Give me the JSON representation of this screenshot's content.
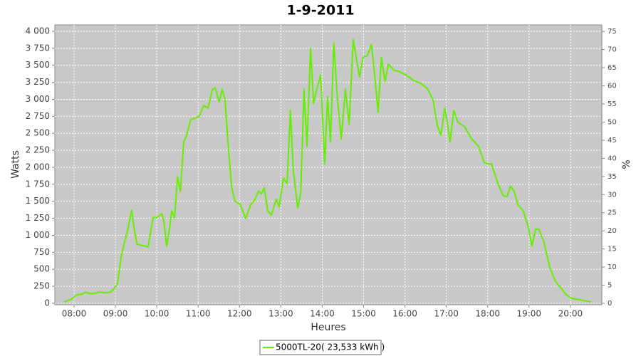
{
  "chart_data": {
    "type": "line",
    "title": "1-9-2011",
    "xlabel": "Heures",
    "ylabel": "Watts",
    "y2label": "%",
    "xlim": [
      7.535,
      20.76
    ],
    "ylim": [
      -21,
      4094
    ],
    "y2lim": [
      -0.39,
      76.8
    ],
    "xticks": [
      {
        "value": 8,
        "label": "08:00"
      },
      {
        "value": 9,
        "label": "09:00"
      },
      {
        "value": 10,
        "label": "10:00"
      },
      {
        "value": 11,
        "label": "11:00"
      },
      {
        "value": 12,
        "label": "12:00"
      },
      {
        "value": 13,
        "label": "13:00"
      },
      {
        "value": 14,
        "label": "14:00"
      },
      {
        "value": 15,
        "label": "15:00"
      },
      {
        "value": 16,
        "label": "16:00"
      },
      {
        "value": 17,
        "label": "17:00"
      },
      {
        "value": 18,
        "label": "18:00"
      },
      {
        "value": 19,
        "label": "19:00"
      },
      {
        "value": 20,
        "label": "20:00"
      }
    ],
    "yticks": [
      0,
      250,
      500,
      750,
      {
        "value": 1000,
        "label": "1 000"
      },
      {
        "value": 1250,
        "label": "1 250"
      },
      {
        "value": 1500,
        "label": "1 500"
      },
      {
        "value": 1750,
        "label": "1 750"
      },
      {
        "value": 2000,
        "label": "2 000"
      },
      {
        "value": 2250,
        "label": "2 250"
      },
      {
        "value": 2500,
        "label": "2 500"
      },
      {
        "value": 2750,
        "label": "2 750"
      },
      {
        "value": 3000,
        "label": "3 000"
      },
      {
        "value": 3250,
        "label": "3 250"
      },
      {
        "value": 3500,
        "label": "3 500"
      },
      {
        "value": 3750,
        "label": "3 750"
      },
      {
        "value": 4000,
        "label": "4 000"
      }
    ],
    "y2ticks": [
      0,
      5,
      10,
      15,
      20,
      25,
      30,
      35,
      40,
      45,
      50,
      55,
      60,
      65,
      70,
      75
    ],
    "grid": true,
    "legend": "bottom",
    "series": [
      {
        "name": "5000TL-20( 23,533 kWh )",
        "color": "#66ee00",
        "x": [
          7.76,
          7.93,
          8.07,
          8.19,
          8.28,
          8.36,
          8.48,
          8.62,
          8.79,
          8.88,
          8.96,
          9.05,
          9.14,
          9.22,
          9.31,
          9.39,
          9.45,
          9.52,
          9.65,
          9.79,
          9.91,
          10.0,
          10.12,
          10.17,
          10.24,
          10.31,
          10.36,
          10.43,
          10.5,
          10.57,
          10.65,
          10.72,
          10.82,
          10.94,
          11.03,
          11.13,
          11.24,
          11.34,
          11.41,
          11.51,
          11.58,
          11.65,
          11.72,
          11.81,
          11.89,
          12.01,
          12.15,
          12.27,
          12.37,
          12.46,
          12.53,
          12.6,
          12.68,
          12.77,
          12.89,
          12.96,
          13.06,
          13.15,
          13.23,
          13.3,
          13.41,
          13.48,
          13.56,
          13.63,
          13.72,
          13.79,
          13.87,
          13.96,
          14.06,
          14.13,
          14.2,
          14.28,
          14.37,
          14.46,
          14.56,
          14.65,
          14.75,
          14.82,
          14.9,
          14.99,
          15.09,
          15.19,
          15.26,
          15.35,
          15.43,
          15.52,
          15.6,
          15.73,
          15.85,
          16.02,
          16.2,
          16.37,
          16.54,
          16.68,
          16.78,
          16.87,
          16.96,
          17.02,
          17.09,
          17.18,
          17.28,
          17.44,
          17.61,
          17.78,
          17.92,
          18.01,
          18.09,
          18.26,
          18.38,
          18.47,
          18.55,
          18.64,
          18.73,
          18.86,
          18.98,
          19.07,
          19.16,
          19.24,
          19.36,
          19.5,
          19.64,
          19.78,
          19.9,
          20.02,
          20.16,
          20.33,
          20.5
        ],
        "values": [
          20,
          60,
          125,
          135,
          165,
          145,
          145,
          165,
          155,
          165,
          210,
          290,
          690,
          900,
          1110,
          1370,
          1110,
          870,
          850,
          830,
          1260,
          1260,
          1320,
          1210,
          840,
          1110,
          1360,
          1260,
          1860,
          1650,
          2370,
          2470,
          2700,
          2730,
          2750,
          2910,
          2870,
          3140,
          3170,
          2960,
          3150,
          3000,
          2370,
          1710,
          1500,
          1460,
          1250,
          1450,
          1520,
          1650,
          1610,
          1700,
          1360,
          1300,
          1530,
          1420,
          1840,
          1760,
          2840,
          1950,
          1400,
          1630,
          3150,
          2310,
          3750,
          2940,
          3150,
          3360,
          2050,
          3040,
          2370,
          3830,
          2990,
          2420,
          3150,
          2630,
          3880,
          3620,
          3330,
          3620,
          3640,
          3810,
          3410,
          2810,
          3620,
          3260,
          3520,
          3430,
          3410,
          3360,
          3280,
          3240,
          3160,
          2990,
          2620,
          2470,
          2870,
          2680,
          2370,
          2840,
          2660,
          2600,
          2420,
          2310,
          2070,
          2050,
          2050,
          1740,
          1580,
          1570,
          1720,
          1650,
          1450,
          1360,
          1130,
          840,
          1090,
          1090,
          900,
          530,
          320,
          220,
          125,
          75,
          60,
          40,
          20
        ]
      }
    ]
  }
}
